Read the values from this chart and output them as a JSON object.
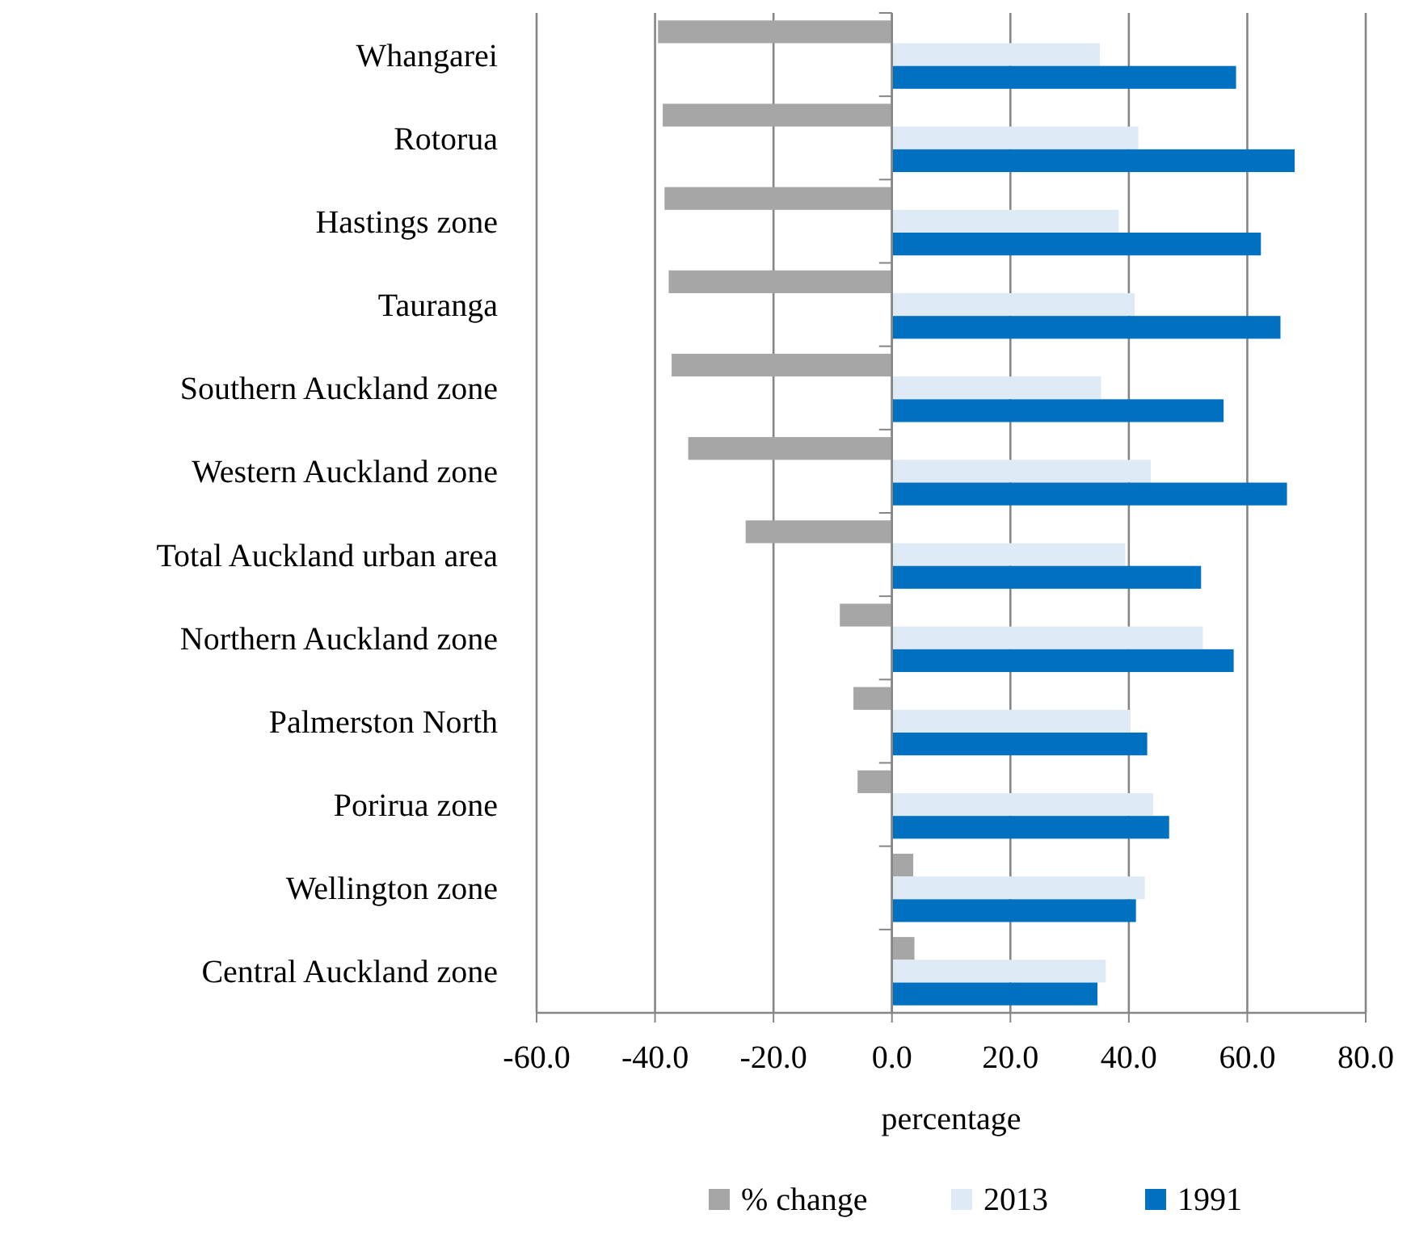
{
  "chart_data": {
    "type": "bar",
    "orientation": "horizontal",
    "xlabel": "percentage",
    "categories": [
      "Whangarei",
      "Rotorua",
      "Hastings zone",
      "Tauranga",
      "Southern Auckland zone",
      "Western Auckland zone",
      "Total Auckland urban area",
      "Northern Auckland zone",
      "Palmerston North",
      "Porirua zone",
      "Wellington zone",
      "Central Auckland zone"
    ],
    "series": [
      {
        "name": "% change",
        "color": "#a6a6a6",
        "values": [
          -39.5,
          -38.7,
          -38.4,
          -37.7,
          -37.2,
          -34.4,
          -24.7,
          -8.8,
          -6.5,
          -5.8,
          3.6,
          3.8
        ]
      },
      {
        "name": "2013",
        "color": "#deeaf6",
        "values": [
          35.1,
          41.6,
          38.3,
          41.0,
          35.3,
          43.7,
          39.4,
          52.5,
          40.2,
          44.1,
          42.7,
          36.1
        ]
      },
      {
        "name": "1991",
        "color": "#0070c0",
        "values": [
          58.1,
          68.0,
          62.3,
          65.6,
          56.0,
          66.7,
          52.2,
          57.7,
          43.1,
          46.8,
          41.2,
          34.7
        ]
      }
    ],
    "xlim": [
      -60,
      80
    ],
    "xticks": [
      {
        "value": -60,
        "label": "-60.0"
      },
      {
        "value": -40,
        "label": "-40.0"
      },
      {
        "value": -20,
        "label": "-20.0"
      },
      {
        "value": 0,
        "label": "0.0"
      },
      {
        "value": 20,
        "label": "20.0"
      },
      {
        "value": 40,
        "label": "40.0"
      },
      {
        "value": 60,
        "label": "60.0"
      },
      {
        "value": 80,
        "label": "80.0"
      }
    ],
    "grid": "x",
    "legend": "bottom"
  }
}
